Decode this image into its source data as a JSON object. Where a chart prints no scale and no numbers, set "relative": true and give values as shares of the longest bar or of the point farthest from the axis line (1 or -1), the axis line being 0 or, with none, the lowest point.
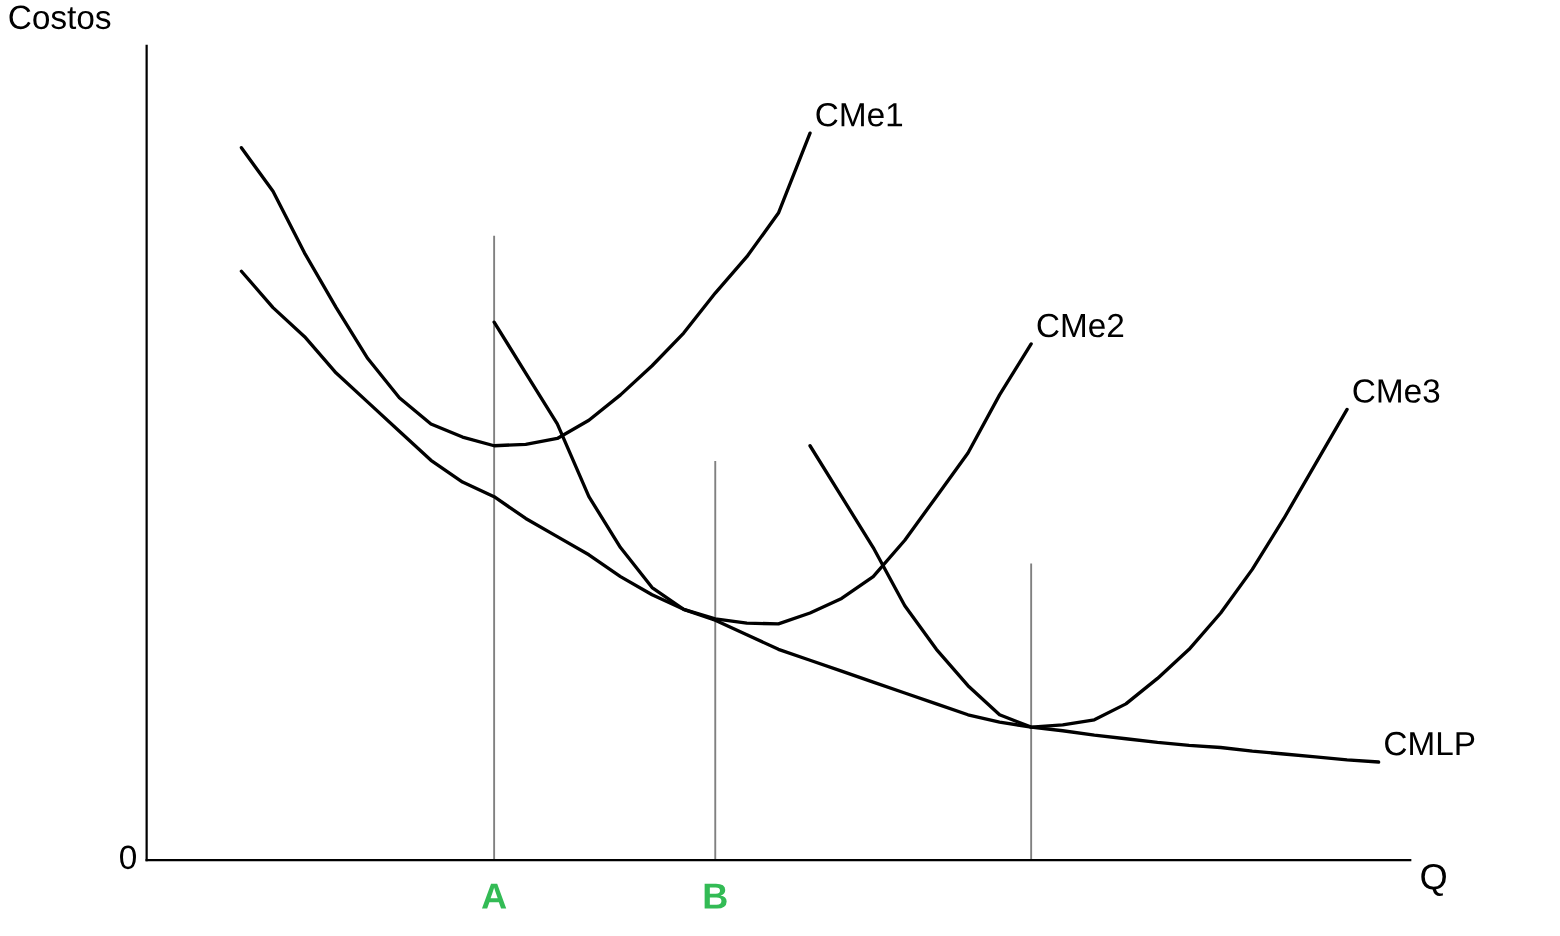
{
  "chart_data": {
    "type": "line",
    "relative": true,
    "ylabel": "Costos",
    "xlabel": "Q",
    "grid": false,
    "legend": false,
    "marker": "none",
    "line_style": "solid",
    "categories": [
      null,
      null,
      null,
      null,
      null,
      null,
      null,
      null,
      null,
      null,
      null,
      "A",
      null,
      null,
      null,
      null,
      null,
      null,
      "B",
      null,
      null,
      null,
      null,
      null,
      null,
      null,
      null,
      null,
      null,
      null,
      null,
      null,
      null,
      null,
      null,
      null,
      null,
      null,
      null,
      null,
      null
    ],
    "annotations": [
      "0"
    ],
    "series": [
      {
        "name": "CMe1",
        "color": "#000000",
        "values": [
          null,
          null,
          null,
          0.98,
          0.92,
          0.835,
          0.76,
          0.69,
          0.636,
          0.6,
          0.582,
          0.57,
          0.572,
          0.58,
          0.605,
          0.64,
          0.68,
          0.725,
          0.78,
          0.83,
          0.89,
          1.0,
          null,
          null,
          null,
          null,
          null,
          null,
          null,
          null,
          null,
          null,
          null,
          null,
          null,
          null,
          null,
          null,
          null,
          null,
          null
        ]
      },
      {
        "name": "CMe2",
        "color": "#000000",
        "values": [
          null,
          null,
          null,
          null,
          null,
          null,
          null,
          null,
          null,
          null,
          null,
          0.74,
          0.67,
          0.6,
          0.5,
          0.43,
          0.375,
          0.345,
          0.332,
          0.326,
          0.325,
          0.34,
          0.36,
          0.39,
          0.44,
          0.5,
          0.56,
          0.64,
          0.71,
          null,
          null,
          null,
          null,
          null,
          null,
          null,
          null,
          null,
          null,
          null,
          null
        ]
      },
      {
        "name": "CMe3",
        "color": "#000000",
        "values": [
          null,
          null,
          null,
          null,
          null,
          null,
          null,
          null,
          null,
          null,
          null,
          null,
          null,
          null,
          null,
          null,
          null,
          null,
          null,
          null,
          null,
          0.57,
          0.5,
          0.43,
          0.35,
          0.29,
          0.24,
          0.2,
          0.183,
          0.186,
          0.193,
          0.215,
          0.25,
          0.29,
          0.34,
          0.4,
          0.47,
          0.545,
          0.62,
          null,
          null
        ]
      },
      {
        "name": "CMLP",
        "color": "#000000",
        "values": [
          null,
          null,
          null,
          0.81,
          0.76,
          0.72,
          0.67,
          0.63,
          0.59,
          0.55,
          0.52,
          0.5,
          0.47,
          0.445,
          0.42,
          0.39,
          0.365,
          0.345,
          0.33,
          0.31,
          0.29,
          0.275,
          0.26,
          0.245,
          0.23,
          0.215,
          0.2,
          0.19,
          0.183,
          0.178,
          0.172,
          0.167,
          0.162,
          0.158,
          0.155,
          0.15,
          0.146,
          0.142,
          0.138,
          0.135,
          null
        ]
      },
      {
        "type": "bar",
        "color": "#808080",
        "values": [
          null,
          null,
          null,
          null,
          null,
          null,
          null,
          null,
          null,
          null,
          null,
          0.859,
          null,
          null,
          null,
          null,
          null,
          null,
          0.549,
          null,
          null,
          null,
          null,
          null,
          null,
          null,
          null,
          null,
          0.408,
          null,
          null,
          null,
          null,
          null,
          null,
          null,
          null,
          null,
          null,
          null,
          null
        ]
      }
    ]
  }
}
